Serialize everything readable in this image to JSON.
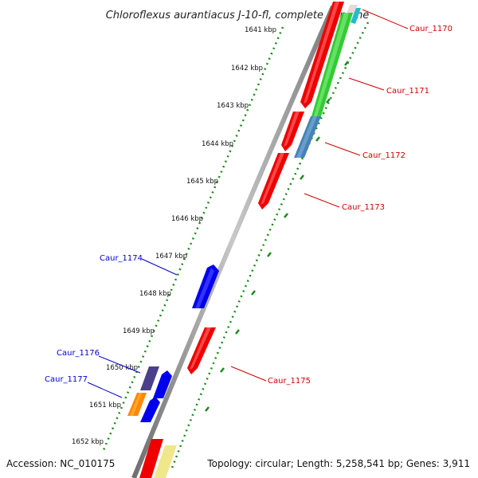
{
  "title": "Chloroflexus aurantiacus J-10-fl, complete genome",
  "accession": "Accession: NC_010175",
  "summary": "Topology: circular; Length: 5,258,541 bp; Genes: 3,911",
  "scale_labels": [
    "1641 kbp",
    "1642 kbp",
    "1643 kbp",
    "1644 kbp",
    "1645 kbp",
    "1646 kbp",
    "1647 kbp",
    "1648 kbp",
    "1649 kbp",
    "1650 kbp",
    "1651 kbp",
    "1652 kbp"
  ],
  "gene_labels": [
    {
      "text": "Caur_1170",
      "strand": "forward",
      "color": "#cc0000"
    },
    {
      "text": "Caur_1171",
      "strand": "forward",
      "color": "#cc0000"
    },
    {
      "text": "Caur_1172",
      "strand": "forward",
      "color": "#cc0000"
    },
    {
      "text": "Caur_1173",
      "strand": "forward",
      "color": "#cc0000"
    },
    {
      "text": "Caur_1174",
      "strand": "reverse",
      "color": "#0000cc"
    },
    {
      "text": "Caur_1175",
      "strand": "forward",
      "color": "#cc0000"
    },
    {
      "text": "Caur_1176",
      "strand": "reverse",
      "color": "#0000cc"
    },
    {
      "text": "Caur_1177",
      "strand": "reverse",
      "color": "#0000cc"
    }
  ],
  "colors": {
    "backbone": "#888888",
    "scale": "#1a8a1a",
    "forward_gene": "#ee0000",
    "reverse_gene": "#0000ee",
    "green_track": "#33cc33",
    "steelblue_track": "#4682b4",
    "purple_gene": "#4b3f8c",
    "orange_gene": "#ff8800",
    "yellow_gene": "#f0e68c"
  }
}
